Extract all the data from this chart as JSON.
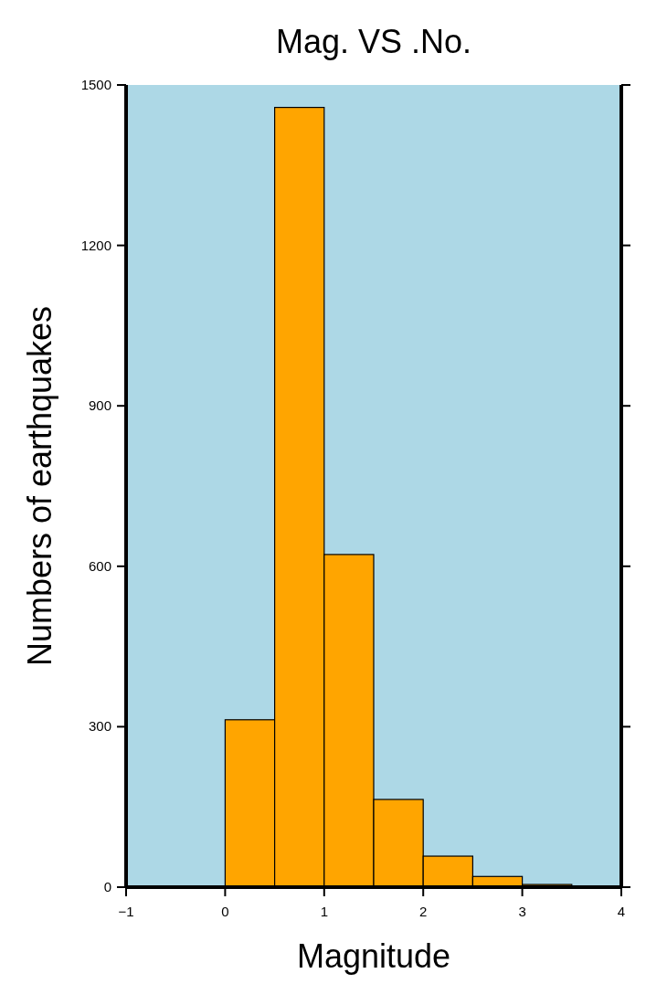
{
  "chart_data": {
    "type": "histogram",
    "title": "Mag. VS .No.",
    "xlabel": "Magnitude",
    "ylabel": "Numbers of earthquakes",
    "bins": [
      0,
      0.5,
      1,
      1.5,
      2,
      2.5,
      3,
      3.5
    ],
    "values": [
      313,
      1458,
      622,
      164,
      58,
      20,
      5
    ],
    "color": "#ffa500",
    "xlim": [
      -1,
      4
    ],
    "xticks": [
      {
        "value": -1,
        "label": "−1"
      },
      0,
      1,
      2,
      3,
      4
    ],
    "ylim": [
      0,
      1500
    ],
    "yticks": [
      0,
      300,
      600,
      900,
      1200,
      1500
    ],
    "grid": false,
    "legend": false
  }
}
